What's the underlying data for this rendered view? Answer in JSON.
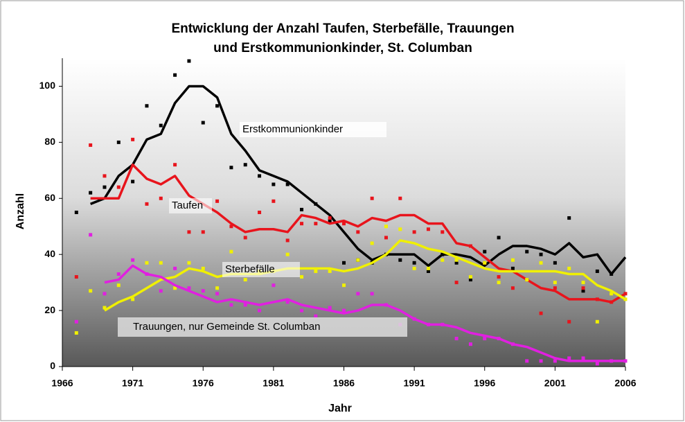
{
  "chart_data": {
    "type": "line",
    "title": [
      "Entwicklung der Anzahl Taufen, Sterbefälle, Trauungen",
      "und Erstkommunionkinder, St. Columban"
    ],
    "x_label": "Jahr",
    "y_label": "Anzahl",
    "x": [
      1967,
      1968,
      1969,
      1970,
      1971,
      1972,
      1973,
      1974,
      1975,
      1976,
      1977,
      1978,
      1979,
      1980,
      1981,
      1982,
      1983,
      1984,
      1985,
      1986,
      1987,
      1988,
      1989,
      1990,
      1991,
      1992,
      1993,
      1994,
      1995,
      1996,
      1997,
      1998,
      1999,
      2000,
      2001,
      2002,
      2003,
      2004,
      2005,
      2006
    ],
    "xlim": [
      1966,
      2006
    ],
    "xticks": [
      1966,
      1971,
      1976,
      1981,
      1986,
      1991,
      1996,
      2001,
      2006
    ],
    "ylim": [
      0,
      110
    ],
    "yticks": [
      0,
      20,
      40,
      60,
      80,
      100
    ],
    "series": [
      {
        "name": "Erstkommunionkinder",
        "color": "#000000",
        "values": [
          55,
          62,
          64,
          80,
          66,
          93,
          86,
          104,
          109,
          87,
          93,
          71,
          72,
          68,
          65,
          65,
          56,
          58,
          52,
          37,
          38,
          37,
          40,
          38,
          37,
          34,
          40,
          37,
          31,
          41,
          46,
          35,
          41,
          40,
          37,
          53,
          27,
          34,
          33,
          null
        ],
        "trend": [
          null,
          58,
          60,
          68,
          72,
          81,
          83,
          94,
          100,
          100,
          96,
          83,
          77,
          70,
          68,
          66,
          62,
          58,
          54,
          48,
          42,
          38,
          40,
          40,
          40,
          36,
          40,
          40,
          39,
          36,
          40,
          43,
          43,
          42,
          40,
          44,
          39,
          40,
          33,
          39
        ]
      },
      {
        "name": "Taufen",
        "color": "#e8141c",
        "values": [
          32,
          79,
          68,
          64,
          81,
          58,
          60,
          72,
          48,
          48,
          59,
          50,
          46,
          55,
          59,
          45,
          51,
          51,
          53,
          51,
          48,
          60,
          46,
          60,
          48,
          49,
          48,
          30,
          43,
          37,
          32,
          28,
          31,
          19,
          28,
          16,
          28,
          24,
          23,
          26
        ],
        "trend": [
          null,
          60,
          60,
          60,
          72,
          67,
          65,
          68,
          61,
          58,
          55,
          51,
          48,
          49,
          49,
          48,
          54,
          53,
          51,
          52,
          50,
          53,
          52,
          54,
          54,
          51,
          51,
          44,
          43,
          39,
          35,
          34,
          31,
          28,
          27,
          24,
          24,
          24,
          23,
          26
        ]
      },
      {
        "name": "Sterbefälle",
        "color": "#f0f000",
        "values": [
          12,
          27,
          21,
          29,
          24,
          37,
          37,
          28,
          37,
          35,
          28,
          41,
          31,
          34,
          34,
          40,
          32,
          34,
          34,
          29,
          38,
          44,
          50,
          49,
          35,
          35,
          38,
          38,
          32,
          37,
          30,
          38,
          31,
          37,
          30,
          35,
          30,
          16,
          26,
          24
        ],
        "trend": [
          null,
          null,
          20,
          23,
          25,
          28,
          31,
          32,
          35,
          34,
          32,
          33,
          33,
          33,
          34,
          35,
          35,
          35,
          35,
          34,
          35,
          37,
          40,
          45,
          44,
          42,
          41,
          39,
          37,
          35,
          34,
          34,
          34,
          34,
          34,
          33,
          33,
          29,
          27,
          24
        ]
      },
      {
        "name": "Trauungen, nur Gemeinde St. Columban",
        "color": "#e020e0",
        "values": [
          16,
          47,
          26,
          33,
          38,
          33,
          27,
          35,
          28,
          27,
          26,
          22,
          22,
          20,
          29,
          23,
          20,
          18,
          21,
          20,
          26,
          26,
          22,
          15,
          17,
          15,
          15,
          10,
          8,
          10,
          10,
          8,
          2,
          2,
          2,
          3,
          3,
          1,
          2,
          2
        ],
        "trend": [
          null,
          null,
          30,
          31,
          36,
          33,
          32,
          29,
          27,
          25,
          23,
          24,
          23,
          22,
          23,
          24,
          22,
          21,
          20,
          19,
          20,
          22,
          22,
          20,
          17,
          15,
          15,
          14,
          12,
          11,
          10,
          8,
          7,
          5,
          3,
          2,
          2,
          2,
          2,
          2
        ]
      }
    ]
  }
}
